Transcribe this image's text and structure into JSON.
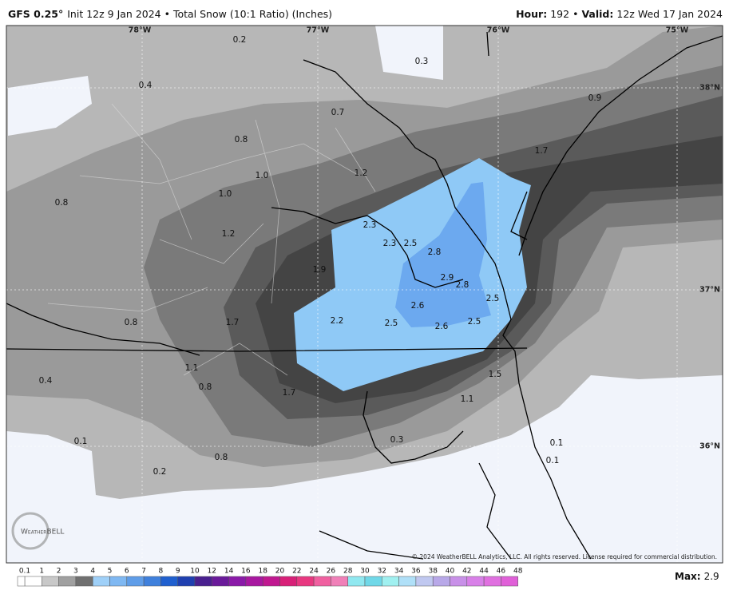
{
  "header": {
    "model": "GFS 0.25°",
    "product": "Init 12z 9 Jan 2024 • Total Snow (10:1 Ratio) (Inches)",
    "hour_label": "Hour:",
    "hour": "192",
    "separator": "•",
    "valid_label": "Valid:",
    "valid": "12z Wed 17 Jan 2024"
  },
  "longitudes": [
    "78°W",
    "77°W",
    "76°W",
    "75°W"
  ],
  "latitudes": [
    "38°N",
    "37°N",
    "36°N"
  ],
  "contour_labels": [
    "0.2",
    "0.3",
    "0.4",
    "0.9",
    "0.7",
    "0.8",
    "1.7",
    "1.0",
    "1.2",
    "1.0",
    "0.8",
    "2.3",
    "2.3",
    "2.5",
    "1.2",
    "2.8",
    "1.9",
    "2.9",
    "2.8",
    "2.5",
    "2.6",
    "1.7",
    "0.8",
    "2.2",
    "2.5",
    "2.6",
    "2.5",
    "1.1",
    "1.5",
    "0.4",
    "0.8",
    "1.7",
    "1.1",
    "0.1",
    "0.3",
    "0.1",
    "0.8",
    "0.1",
    "0.2"
  ],
  "logo": "WeatherBELL",
  "copyright": "© 2024 WeatherBELL Analytics, LLC. All rights reserved. License required for commercial distribution.",
  "colorbar_labels": [
    "0.1",
    "1",
    "2",
    "3",
    "4",
    "5",
    "6",
    "7",
    "8",
    "9",
    "10",
    "12",
    "14",
    "16",
    "18",
    "20",
    "22",
    "24",
    "26",
    "28",
    "30",
    "32",
    "34",
    "36",
    "38",
    "40",
    "42",
    "44",
    "46",
    "48"
  ],
  "max_label": "Max:",
  "max_value": "2.9"
}
